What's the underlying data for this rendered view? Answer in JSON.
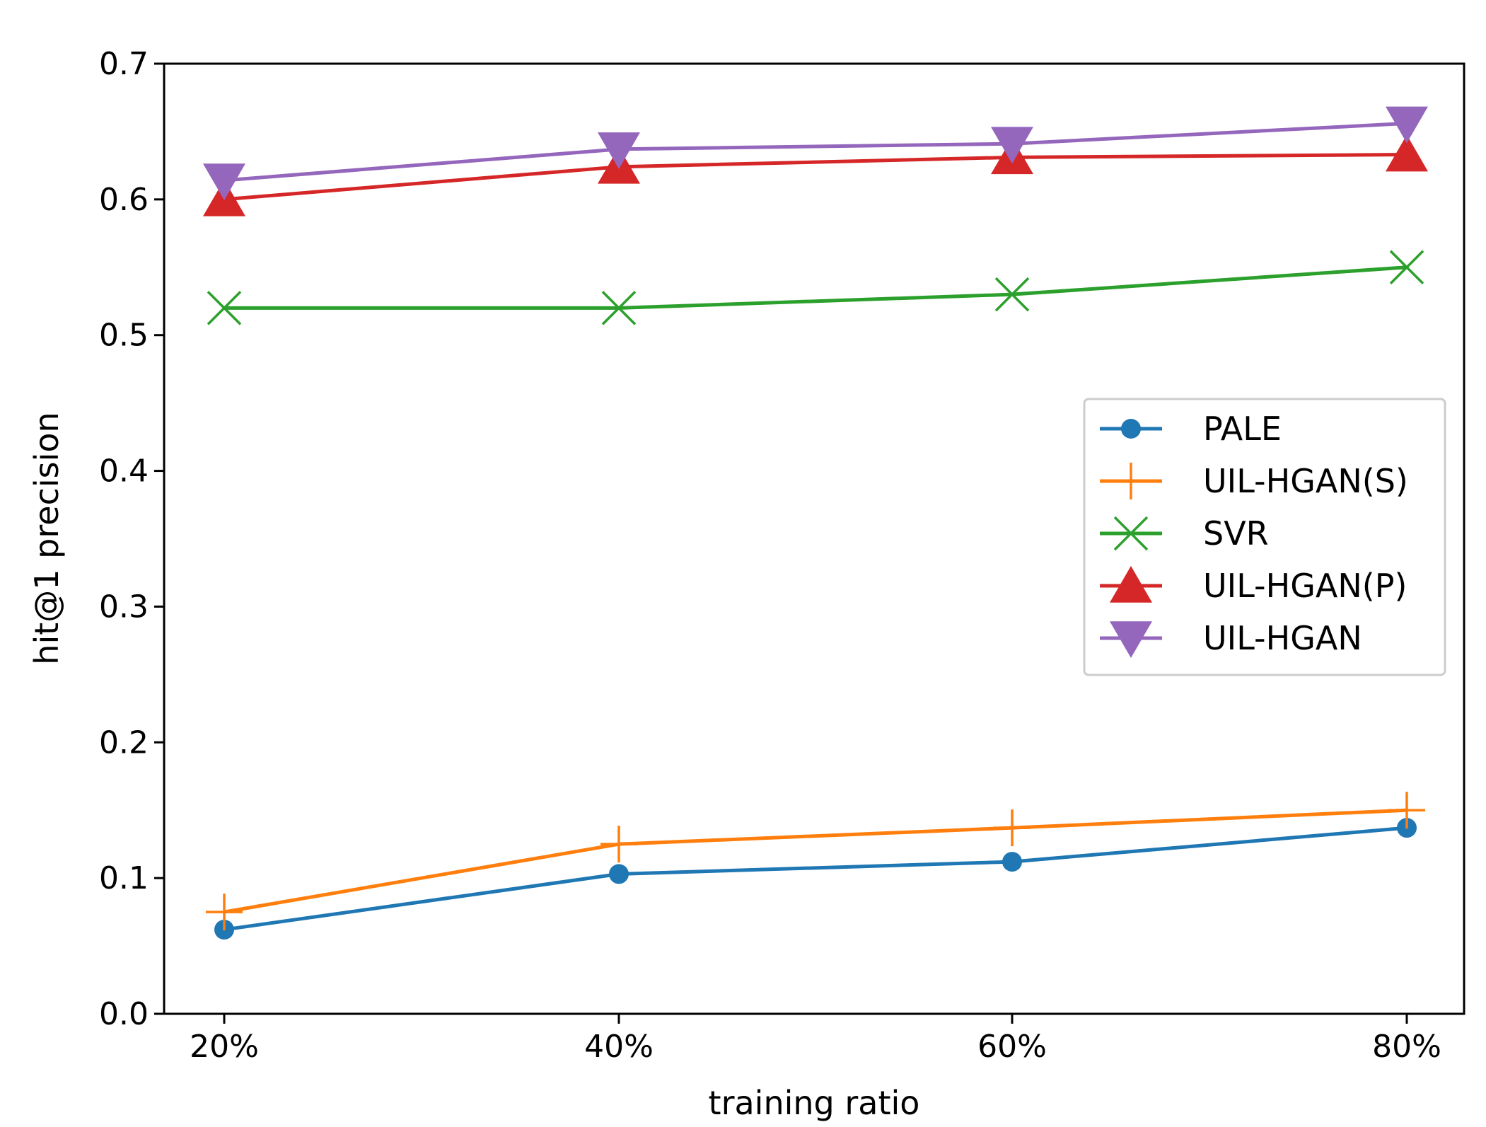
{
  "chart_data": {
    "type": "line",
    "title": "",
    "xlabel": "training ratio",
    "ylabel": "hit@1 precision",
    "categories": [
      "20%",
      "40%",
      "60%",
      "80%"
    ],
    "ylim": [
      0.0,
      0.7
    ],
    "yticks": [
      0.0,
      0.1,
      0.2,
      0.3,
      0.4,
      0.5,
      0.6,
      0.7
    ],
    "ytick_labels": [
      "0.0",
      "0.1",
      "0.2",
      "0.3",
      "0.4",
      "0.5",
      "0.6",
      "0.7"
    ],
    "grid": false,
    "legend_position": "center-right",
    "series": [
      {
        "name": "PALE",
        "color": "#1f77b4",
        "marker": "circle",
        "values": [
          0.062,
          0.103,
          0.112,
          0.137
        ]
      },
      {
        "name": "UIL-HGAN(S)",
        "color": "#ff7f0e",
        "marker": "plus",
        "values": [
          0.075,
          0.125,
          0.137,
          0.15
        ]
      },
      {
        "name": "SVR",
        "color": "#2ca02c",
        "marker": "x",
        "values": [
          0.52,
          0.52,
          0.53,
          0.55
        ]
      },
      {
        "name": "UIL-HGAN(P)",
        "color": "#d62728",
        "marker": "triangle-up",
        "values": [
          0.6,
          0.624,
          0.631,
          0.633
        ]
      },
      {
        "name": "UIL-HGAN",
        "color": "#9467bd",
        "marker": "triangle-down",
        "values": [
          0.614,
          0.637,
          0.641,
          0.656
        ]
      }
    ]
  }
}
